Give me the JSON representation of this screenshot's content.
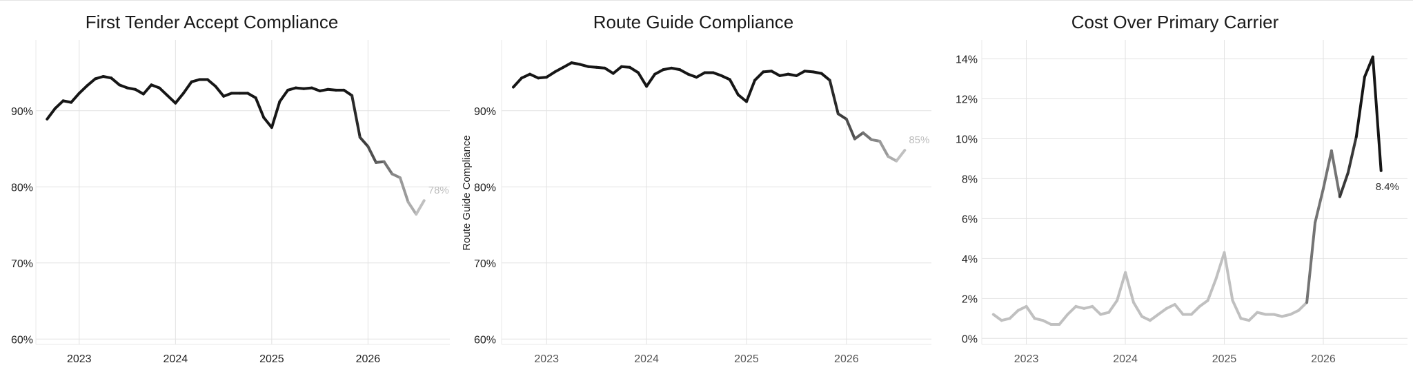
{
  "chart_data": [
    {
      "type": "line",
      "title": "First Tender Accept Compliance",
      "xlabel": "",
      "ylabel": "",
      "x_ticks": [
        2023,
        2024,
        2025,
        2026
      ],
      "y_ticks": [
        60,
        70,
        80,
        90
      ],
      "y_tick_labels": [
        "60%",
        "70%",
        "80%",
        "90%"
      ],
      "xlim": [
        2022.55,
        2026.85
      ],
      "ylim": [
        59.3,
        99.3
      ],
      "grid": true,
      "end_label": "78%",
      "x": [
        2022.667,
        2022.75,
        2022.833,
        2022.917,
        2023.0,
        2023.083,
        2023.167,
        2023.25,
        2023.333,
        2023.417,
        2023.5,
        2023.583,
        2023.667,
        2023.75,
        2023.833,
        2023.917,
        2024.0,
        2024.083,
        2024.167,
        2024.25,
        2024.333,
        2024.417,
        2024.5,
        2024.583,
        2024.667,
        2024.75,
        2024.833,
        2024.917,
        2025.0,
        2025.083,
        2025.167,
        2025.25,
        2025.333,
        2025.417,
        2025.5,
        2025.583,
        2025.667,
        2025.75,
        2025.833,
        2025.917,
        2026.0,
        2026.083,
        2026.167,
        2026.25,
        2026.333,
        2026.417,
        2026.5,
        2026.583
      ],
      "values": [
        88.9,
        90.3,
        91.3,
        91.1,
        92.3,
        93.3,
        94.2,
        94.5,
        94.3,
        93.4,
        93.0,
        92.8,
        92.2,
        93.4,
        93.0,
        92.0,
        91.0,
        92.3,
        93.8,
        94.1,
        94.1,
        93.2,
        91.9,
        92.3,
        92.3,
        92.3,
        91.7,
        89.1,
        87.8,
        91.2,
        92.7,
        93.0,
        92.9,
        93.0,
        92.6,
        92.8,
        92.7,
        92.7,
        92.0,
        86.5,
        85.3,
        83.2,
        83.3,
        81.7,
        81.2,
        78.0,
        76.4,
        78.2
      ]
    },
    {
      "type": "line",
      "title": "Route Guide Compliance",
      "xlabel": "",
      "ylabel": "Route Guide Compliance",
      "x_ticks": [
        2023,
        2024,
        2025,
        2026
      ],
      "y_ticks": [
        60,
        70,
        80,
        90
      ],
      "y_tick_labels": [
        "60%",
        "70%",
        "80%",
        "90%"
      ],
      "xlim": [
        2022.55,
        2026.85
      ],
      "ylim": [
        59.3,
        99.3
      ],
      "grid": true,
      "end_label": "85%",
      "x": [
        2022.667,
        2022.75,
        2022.833,
        2022.917,
        2023.0,
        2023.083,
        2023.167,
        2023.25,
        2023.333,
        2023.417,
        2023.5,
        2023.583,
        2023.667,
        2023.75,
        2023.833,
        2023.917,
        2024.0,
        2024.083,
        2024.167,
        2024.25,
        2024.333,
        2024.417,
        2024.5,
        2024.583,
        2024.667,
        2024.75,
        2024.833,
        2024.917,
        2025.0,
        2025.083,
        2025.167,
        2025.25,
        2025.333,
        2025.417,
        2025.5,
        2025.583,
        2025.667,
        2025.75,
        2025.833,
        2025.917,
        2026.0,
        2026.083,
        2026.167,
        2026.25,
        2026.333,
        2026.417,
        2026.5,
        2026.583
      ],
      "values": [
        93.1,
        94.3,
        94.8,
        94.3,
        94.4,
        95.1,
        95.7,
        96.3,
        96.1,
        95.8,
        95.7,
        95.6,
        94.9,
        95.8,
        95.7,
        95.0,
        93.2,
        94.8,
        95.4,
        95.6,
        95.4,
        94.8,
        94.4,
        95.0,
        95.0,
        94.6,
        94.1,
        92.1,
        91.2,
        94.0,
        95.1,
        95.2,
        94.6,
        94.8,
        94.6,
        95.2,
        95.1,
        94.9,
        94.0,
        89.6,
        88.9,
        86.3,
        87.1,
        86.2,
        86.0,
        84.0,
        83.4,
        84.8
      ]
    },
    {
      "type": "line",
      "title": "Cost Over Primary Carrier",
      "xlabel": "",
      "ylabel": "",
      "x_ticks": [
        2023,
        2024,
        2025,
        2026
      ],
      "y_ticks": [
        0,
        2,
        4,
        6,
        8,
        10,
        12,
        14
      ],
      "y_tick_labels": [
        "0%",
        "2%",
        "4%",
        "6%",
        "8%",
        "10%",
        "12%",
        "14%"
      ],
      "xlim": [
        2022.55,
        2026.85
      ],
      "ylim": [
        -0.3,
        14.95
      ],
      "grid": true,
      "end_label": "8.4%",
      "x": [
        2022.667,
        2022.75,
        2022.833,
        2022.917,
        2023.0,
        2023.083,
        2023.167,
        2023.25,
        2023.333,
        2023.417,
        2023.5,
        2023.583,
        2023.667,
        2023.75,
        2023.833,
        2023.917,
        2024.0,
        2024.083,
        2024.167,
        2024.25,
        2024.333,
        2024.417,
        2024.5,
        2024.583,
        2024.667,
        2024.75,
        2024.833,
        2024.917,
        2025.0,
        2025.083,
        2025.167,
        2025.25,
        2025.333,
        2025.417,
        2025.5,
        2025.583,
        2025.667,
        2025.75,
        2025.833,
        2025.917,
        2026.0,
        2026.083,
        2026.167,
        2026.25,
        2026.333,
        2026.417,
        2026.5,
        2026.583
      ],
      "values": [
        1.2,
        0.9,
        1.0,
        1.4,
        1.6,
        1.0,
        0.9,
        0.7,
        0.7,
        1.2,
        1.6,
        1.5,
        1.6,
        1.2,
        1.3,
        1.9,
        3.3,
        1.8,
        1.1,
        0.9,
        1.2,
        1.5,
        1.7,
        1.2,
        1.2,
        1.6,
        1.9,
        3.0,
        4.3,
        1.9,
        1.0,
        0.9,
        1.3,
        1.2,
        1.2,
        1.1,
        1.2,
        1.4,
        1.8,
        5.8,
        7.5,
        9.4,
        7.1,
        8.3,
        10.1,
        13.1,
        14.1,
        8.4
      ]
    }
  ]
}
